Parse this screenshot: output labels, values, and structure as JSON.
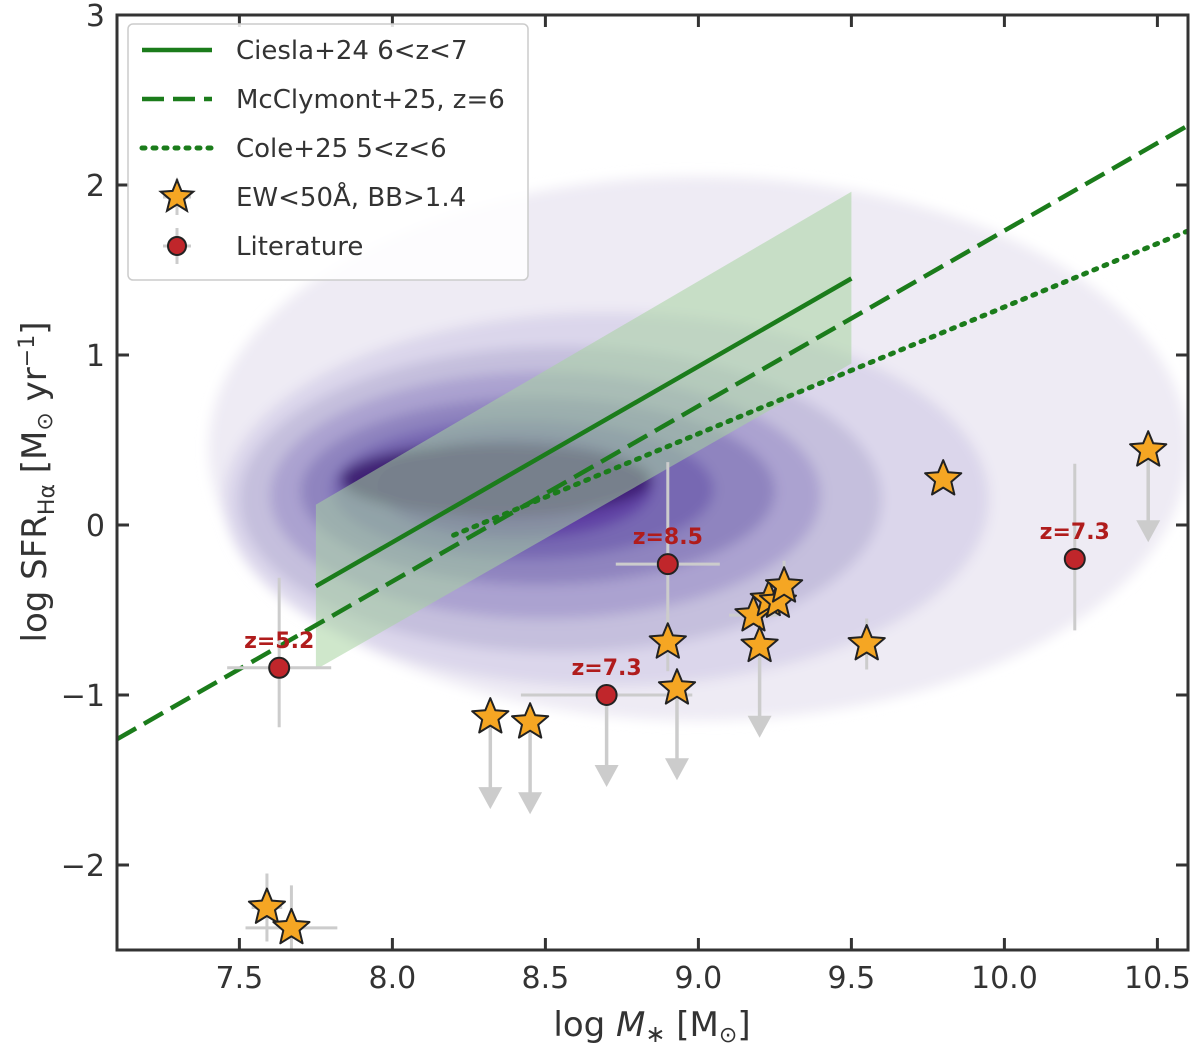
{
  "chart_data": {
    "type": "scatter",
    "title": "",
    "xlabel": "log M* [M⊙]",
    "ylabel": "log SFR_Hα [M⊙ yr⁻¹]",
    "xlim": [
      7.1,
      10.6
    ],
    "ylim": [
      -2.5,
      3.0
    ],
    "xticks": [
      7.5,
      8.0,
      8.5,
      9.0,
      9.5,
      10.0,
      10.5
    ],
    "xtick_labels": [
      "7.5",
      "8.0",
      "8.5",
      "9.0",
      "9.5",
      "10.0",
      "10.5"
    ],
    "yticks": [
      -2,
      -1,
      0,
      1,
      2,
      3
    ],
    "ytick_labels": [
      "−2",
      "−1",
      "0",
      "1",
      "2",
      "3"
    ],
    "colors": {
      "main_sequence": "#1b7c1b",
      "band": "#a8d3a0",
      "star_fill": "#f5a623",
      "lit_fill": "#c0262b",
      "error": "#cccccc",
      "annotation": "#b01c1c",
      "density": [
        "#ece9f3",
        "#d9d4ea",
        "#c2bcdc",
        "#a79fce",
        "#8c81bd",
        "#7465b0",
        "#5e3fa3",
        "#5a1fa1",
        "#3a1a6e"
      ]
    },
    "lines": [
      {
        "name": "Ciesla+24 6<z<7",
        "style": "solid",
        "x": [
          7.75,
          9.5
        ],
        "y": [
          -0.36,
          1.45
        ]
      },
      {
        "name": "McClymont+25, z=6",
        "style": "dashed",
        "x": [
          7.1,
          10.6
        ],
        "y": [
          -1.26,
          2.35
        ]
      },
      {
        "name": "Cole+25 5<z<6",
        "style": "dotted",
        "x": [
          8.2,
          10.6
        ],
        "y": [
          -0.06,
          1.73
        ]
      }
    ],
    "band": {
      "x": [
        7.75,
        9.5
      ],
      "upper": [
        0.12,
        1.96
      ],
      "lower": [
        -0.85,
        0.95
      ]
    },
    "density_levels": [
      {
        "xmin": 7.4,
        "xmax": 10.6,
        "ymin": -1.15,
        "ymax": 2.05
      },
      {
        "xmin": 7.45,
        "xmax": 9.95,
        "ymin": -0.95,
        "ymax": 1.25
      },
      {
        "xmin": 7.5,
        "xmax": 9.6,
        "ymin": -0.75,
        "ymax": 1.05
      },
      {
        "xmin": 7.6,
        "xmax": 9.4,
        "ymin": -0.55,
        "ymax": 0.9
      },
      {
        "xmin": 7.7,
        "xmax": 9.25,
        "ymin": -0.35,
        "ymax": 0.75
      },
      {
        "xmin": 7.8,
        "xmax": 9.05,
        "ymin": -0.2,
        "ymax": 0.62
      },
      {
        "xmin": 7.95,
        "xmax": 8.85,
        "ymin": -0.08,
        "ymax": 0.52
      },
      {
        "xmin": 8.05,
        "xmax": 8.75,
        "ymin": 0.02,
        "ymax": 0.45
      },
      {
        "xmin": 7.83,
        "xmax": 8.85,
        "ymin": 0.05,
        "ymax": 0.48
      }
    ],
    "series": [
      {
        "name": "EW<50Å, BB>1.4",
        "marker": "star",
        "points": [
          {
            "x": 7.59,
            "y": -2.25,
            "xerr": 0.05,
            "yerr": 0.2,
            "upper_limit": false
          },
          {
            "x": 7.67,
            "y": -2.37,
            "xerr": 0.15,
            "yerr": 0.25,
            "upper_limit": false
          },
          {
            "x": 8.32,
            "y": -1.13,
            "xerr": 0,
            "yerr": 0,
            "upper_limit": true
          },
          {
            "x": 8.45,
            "y": -1.16,
            "xerr": 0,
            "yerr": 0,
            "upper_limit": true
          },
          {
            "x": 8.9,
            "y": -0.69,
            "xerr": 0,
            "yerr": 0.17,
            "upper_limit": false
          },
          {
            "x": 8.93,
            "y": -0.96,
            "xerr": 0,
            "yerr": 0,
            "upper_limit": true
          },
          {
            "x": 9.18,
            "y": -0.53,
            "xerr": 0.08,
            "yerr": 0,
            "upper_limit": false
          },
          {
            "x": 9.2,
            "y": -0.71,
            "xerr": 0,
            "yerr": 0,
            "upper_limit": true
          },
          {
            "x": 9.23,
            "y": -0.44,
            "xerr": 0,
            "yerr": 0.1,
            "upper_limit": false
          },
          {
            "x": 9.26,
            "y": -0.45,
            "xerr": 0,
            "yerr": 0,
            "upper_limit": false
          },
          {
            "x": 9.28,
            "y": -0.36,
            "xerr": 0,
            "yerr": 0.15,
            "upper_limit": false
          },
          {
            "x": 9.55,
            "y": -0.7,
            "xerr": 0,
            "yerr": 0.15,
            "upper_limit": false
          },
          {
            "x": 9.8,
            "y": 0.27,
            "xerr": 0,
            "yerr": 0,
            "upper_limit": false
          },
          {
            "x": 10.47,
            "y": 0.44,
            "xerr": 0,
            "yerr": 0,
            "upper_limit": true
          }
        ]
      },
      {
        "name": "Literature",
        "marker": "circle",
        "points": [
          {
            "x": 7.63,
            "y": -0.84,
            "xerr": 0.17,
            "yerr_low": 0.35,
            "yerr_high": 0.53,
            "upper_limit": false,
            "label": "z=5.2"
          },
          {
            "x": 8.7,
            "y": -1.0,
            "xerr": 0.28,
            "yerr_low": 0,
            "yerr_high": 0,
            "upper_limit": true,
            "label": "z=7.3"
          },
          {
            "x": 8.9,
            "y": -0.23,
            "xerr": 0.17,
            "yerr_low": 0.35,
            "yerr_high": 0.6,
            "upper_limit": false,
            "label": "z=8.5"
          },
          {
            "x": 10.23,
            "y": -0.2,
            "xerr": 0,
            "yerr_low": 0.42,
            "yerr_high": 0.56,
            "upper_limit": false,
            "label": "z=7.3"
          }
        ]
      }
    ],
    "legend": {
      "position": "top-left",
      "entries": [
        {
          "label": "Ciesla+24 6<z<7",
          "style": "solid"
        },
        {
          "label": "McClymont+25, z=6",
          "style": "dashed"
        },
        {
          "label": "Cole+25 5<z<6",
          "style": "dotted"
        },
        {
          "label": "EW<50Å, BB>1.4",
          "style": "star"
        },
        {
          "label": "Literature",
          "style": "circle"
        }
      ]
    }
  }
}
